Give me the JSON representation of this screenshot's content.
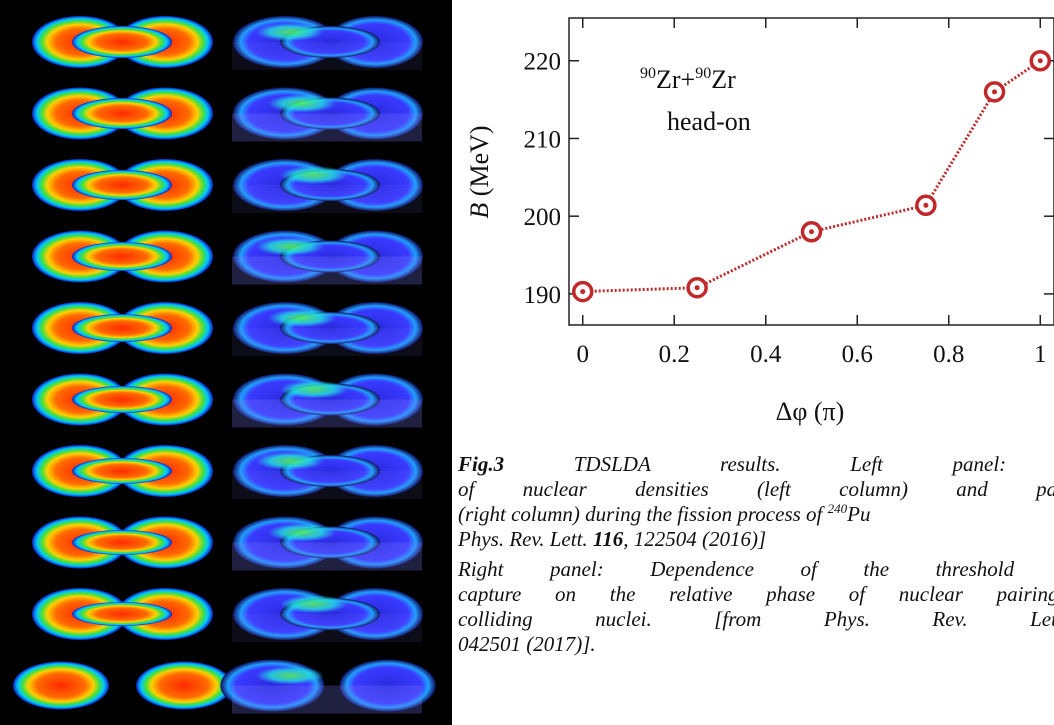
{
  "chart_data": {
    "type": "line",
    "annotation": [
      "90",
      "Zr+",
      "90",
      "Zr"
    ],
    "subtitle": "head-on",
    "y_label": [
      "B",
      " (MeV)"
    ],
    "x_label": "Δφ (π)",
    "x": [
      0,
      0.25,
      0.5,
      0.75,
      0.9,
      1
    ],
    "series": [
      {
        "color": "#c0282a",
        "values": [
          190.3,
          190.8,
          198,
          201.4,
          216,
          220
        ]
      }
    ],
    "xlim": [
      -0.03,
      1.03
    ],
    "xticks": [
      0,
      0.2,
      0.4,
      0.6,
      0.8,
      1
    ],
    "ylim": [
      186,
      225.5
    ],
    "yticks": [
      190,
      200,
      210,
      220
    ]
  },
  "caption": {
    "lines": [
      [
        "Fig.3",
        " TDSLDA results. Left panel: Ev"
      ],
      [
        "of nuclear densities (left column) and pairing"
      ],
      [
        "(right column) during the fission process of ",
        "240",
        "Pu"
      ],
      [
        "Phys. Rev. Lett. ",
        "116",
        ", 122504 (2016)]"
      ],
      [
        "Right panel: Dependence of the threshold ener"
      ],
      [
        "capture on the relative phase of nuclear pairing f"
      ],
      [
        "colliding nuclei. [from Phys. Rev. Lett."
      ],
      [
        "042501 (2017)]."
      ]
    ]
  }
}
